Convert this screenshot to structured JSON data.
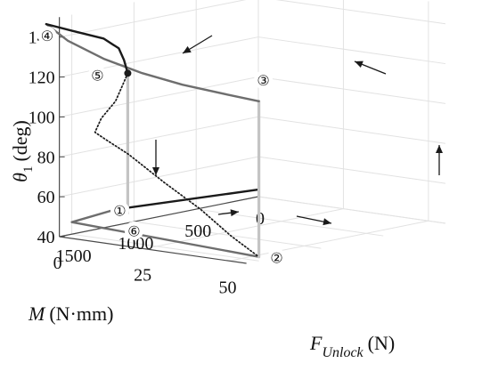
{
  "chart_data": {
    "type": "line3d",
    "title": "",
    "axes": {
      "z": {
        "label_main": "θ",
        "label_sub": "1",
        "label_unit": "(deg)",
        "ticks": [
          40,
          60,
          80,
          100,
          120,
          140
        ],
        "range": [
          40,
          150
        ]
      },
      "m": {
        "label_main": "M",
        "label_unit": "(N·mm)",
        "ticks": [
          0,
          500,
          1000,
          1500
        ],
        "range": [
          0,
          1600
        ]
      },
      "f": {
        "label_main": "F",
        "label_sub": "Unlock",
        "label_unit": "(N)",
        "ticks": [
          0,
          25,
          50
        ],
        "range": [
          0,
          55
        ]
      }
    },
    "grid": true,
    "series": [
      {
        "style": "black",
        "points": [
          [
            0,
            0,
            43.5
          ],
          [
            1150,
            0,
            48
          ]
        ]
      },
      {
        "style": "gray",
        "points": [
          [
            1150,
            0,
            48
          ],
          [
            1500,
            0,
            46
          ],
          [
            1500,
            55,
            42
          ]
        ]
      },
      {
        "style": "lightgray",
        "points": [
          [
            1500,
            55,
            42
          ],
          [
            1500,
            55,
            120
          ]
        ]
      },
      {
        "style": "gray",
        "points": [
          [
            1500,
            55,
            120
          ],
          [
            1590,
            49,
            123
          ],
          [
            1650,
            38,
            126
          ],
          [
            1700,
            28,
            130
          ],
          [
            1730,
            18,
            135
          ],
          [
            1750,
            8,
            142
          ],
          [
            1760,
            2,
            149
          ]
        ]
      },
      {
        "style": "black",
        "points": [
          [
            1760,
            2,
            149
          ],
          [
            1550,
            2,
            143
          ],
          [
            1300,
            2,
            136
          ],
          [
            1150,
            1,
            129
          ],
          [
            1080,
            0,
            122
          ],
          [
            1050,
            0,
            115
          ]
        ]
      },
      {
        "style": "lightgray",
        "points": [
          [
            1050,
            0,
            115
          ],
          [
            1050,
            0,
            45
          ]
        ]
      },
      {
        "style": "dotted",
        "points": [
          [
            1050,
            0,
            115
          ],
          [
            1120,
            1,
            110
          ],
          [
            1230,
            3,
            104
          ],
          [
            1400,
            5,
            98
          ],
          [
            1560,
            9,
            94
          ],
          [
            1590,
            13,
            92
          ],
          [
            1590,
            20,
            86
          ],
          [
            1575,
            30,
            74
          ],
          [
            1560,
            40,
            63
          ],
          [
            1530,
            48,
            51
          ],
          [
            1500,
            55,
            42
          ]
        ]
      }
    ],
    "critical_point": [
      1050,
      0,
      115
    ],
    "markers": [
      {
        "label": "①",
        "at": [
          1150,
          0,
          48
        ]
      },
      {
        "label": "②",
        "at": [
          1500,
          55,
          42
        ]
      },
      {
        "label": "③",
        "at": [
          1500,
          55,
          120
        ]
      },
      {
        "label": "④",
        "at": [
          1760,
          2,
          149
        ]
      },
      {
        "label": "⑤",
        "at": [
          1050,
          0,
          115
        ]
      },
      {
        "label": "⑥",
        "at": [
          1050,
          0,
          45
        ]
      }
    ]
  },
  "colors": {
    "black": "#1a1a1a",
    "gray": "#6e6e6e",
    "lightgray": "#c4c4c4",
    "grid": "#e2e2e2",
    "axis": "#4a4a4a"
  }
}
